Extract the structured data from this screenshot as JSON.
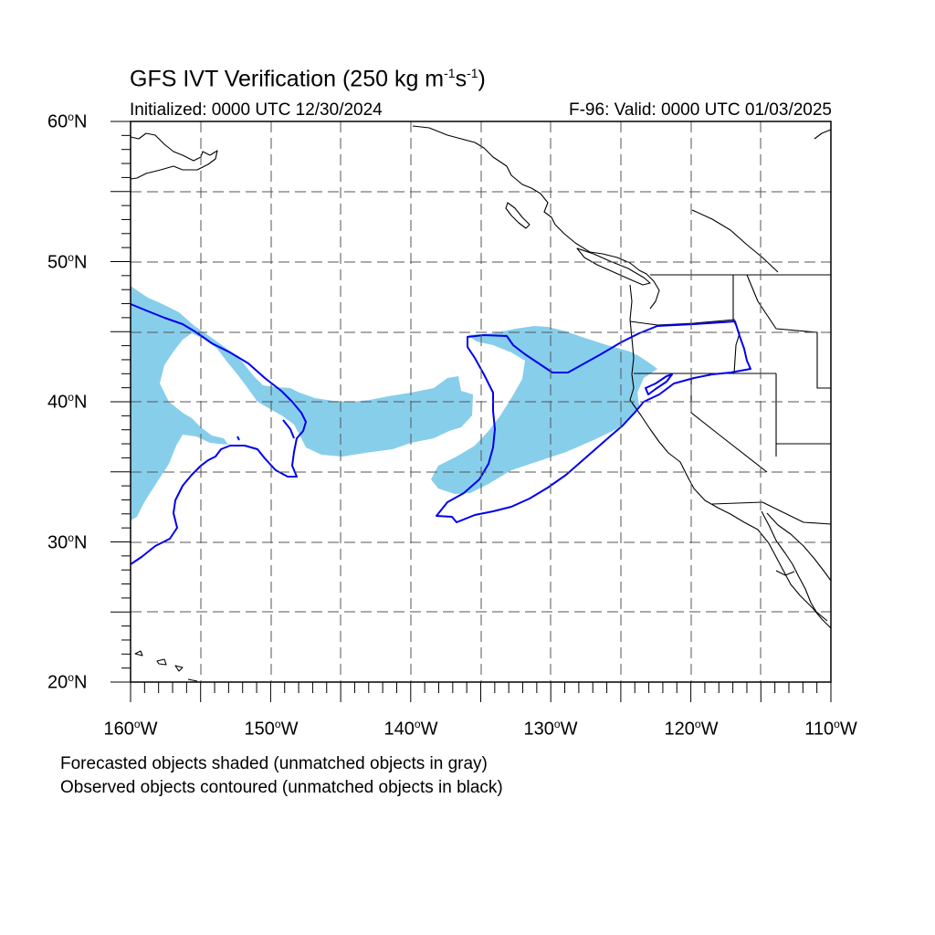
{
  "header": {
    "title_main": "GFS IVT Verification (250 kg m",
    "title_sup1": "-1",
    "title_mid": "s",
    "title_sup2": "-1",
    "title_end": ")",
    "initialized": "Initialized: 0000 UTC 12/30/2024",
    "valid": "F-96: Valid: 0000 UTC 01/03/2025"
  },
  "axes": {
    "lat_labels": [
      {
        "num": "60",
        "sup": "o",
        "hemi": "N"
      },
      {
        "num": "50",
        "sup": "o",
        "hemi": "N"
      },
      {
        "num": "40",
        "sup": "o",
        "hemi": "N"
      },
      {
        "num": "30",
        "sup": "o",
        "hemi": "N"
      },
      {
        "num": "20",
        "sup": "o",
        "hemi": "N"
      }
    ],
    "lon_labels": [
      {
        "num": "160",
        "sup": "o",
        "hemi": "W"
      },
      {
        "num": "150",
        "sup": "o",
        "hemi": "W"
      },
      {
        "num": "140",
        "sup": "o",
        "hemi": "W"
      },
      {
        "num": "130",
        "sup": "o",
        "hemi": "W"
      },
      {
        "num": "120",
        "sup": "o",
        "hemi": "W"
      },
      {
        "num": "110",
        "sup": "o",
        "hemi": "W"
      }
    ],
    "lat_range": [
      20,
      60
    ],
    "lon_range": [
      -160,
      -110
    ],
    "grid_step_deg": 5
  },
  "legend": {
    "line1": "Forecasted objects shaded (unmatched objects in gray)",
    "line2": "Observed objects contoured (unmatched objects in black)"
  },
  "colors": {
    "forecast_fill": "#87ceeb",
    "observed_contour": "#0000ee",
    "coastline": "#000000",
    "grid": "#444444"
  }
}
